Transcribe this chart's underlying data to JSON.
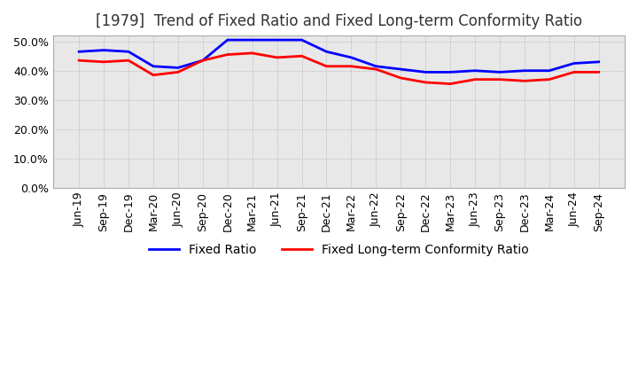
{
  "title": "[1979]  Trend of Fixed Ratio and Fixed Long-term Conformity Ratio",
  "x_labels": [
    "Jun-19",
    "Sep-19",
    "Dec-19",
    "Mar-20",
    "Jun-20",
    "Sep-20",
    "Dec-20",
    "Mar-21",
    "Jun-21",
    "Sep-21",
    "Dec-21",
    "Mar-22",
    "Jun-22",
    "Sep-22",
    "Dec-22",
    "Mar-23",
    "Jun-23",
    "Sep-23",
    "Dec-23",
    "Mar-24",
    "Jun-24",
    "Sep-24"
  ],
  "fixed_ratio": [
    46.5,
    47.0,
    46.5,
    41.5,
    41.0,
    43.5,
    50.5,
    50.5,
    50.5,
    50.5,
    46.5,
    44.5,
    41.5,
    40.5,
    39.5,
    39.5,
    40.0,
    39.5,
    40.0,
    40.0,
    42.5,
    43.0
  ],
  "fixed_lt_conformity": [
    43.5,
    43.0,
    43.5,
    38.5,
    39.5,
    43.5,
    45.5,
    46.0,
    44.5,
    45.0,
    41.5,
    41.5,
    40.5,
    37.5,
    36.0,
    35.5,
    37.0,
    37.0,
    36.5,
    37.0,
    39.5,
    39.5
  ],
  "fixed_ratio_color": "#0000ff",
  "fixed_lt_color": "#ff0000",
  "ylim": [
    0,
    52
  ],
  "yticks": [
    0.0,
    10.0,
    20.0,
    30.0,
    40.0,
    50.0
  ],
  "plot_bg_color": "#e8e8e8",
  "background_color": "#ffffff",
  "grid_color": "#aaaaaa",
  "title_fontsize": 12,
  "legend_fontsize": 10,
  "tick_fontsize": 9
}
